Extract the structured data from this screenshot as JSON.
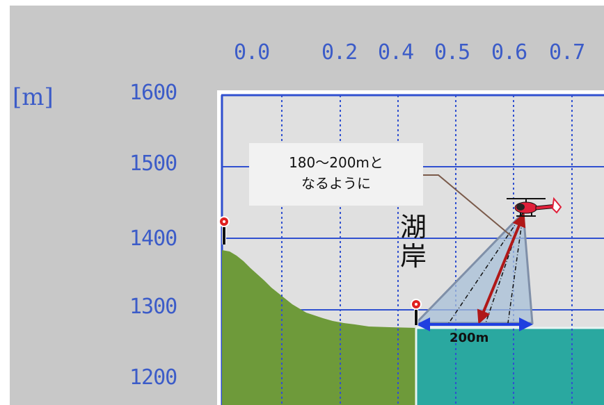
{
  "top_ticks": [
    "0.0",
    "0.2",
    "0.4",
    "0.5",
    "0.6",
    "0.7"
  ],
  "unit_label": "[m]",
  "left_ticks": [
    "1600",
    "1500",
    "1400",
    "1300",
    "1200"
  ],
  "callout": {
    "line1": "180〜200mと",
    "line2": "なるように"
  },
  "lake_label": {
    "char1": "湖",
    "char2": "岸"
  },
  "distance_label": "200m",
  "colors": {
    "panel_bg": "#c8c8c8",
    "plot_bg": "#e0e0e0",
    "grid": "#3050d0",
    "terrain": "#6e9a3a",
    "lake": "#2aa8a0",
    "beam": "#7f9fbf",
    "helicopter": "#e0203a",
    "arrow_red": "#b01818",
    "arrow_blue": "#1f3fe0"
  }
}
